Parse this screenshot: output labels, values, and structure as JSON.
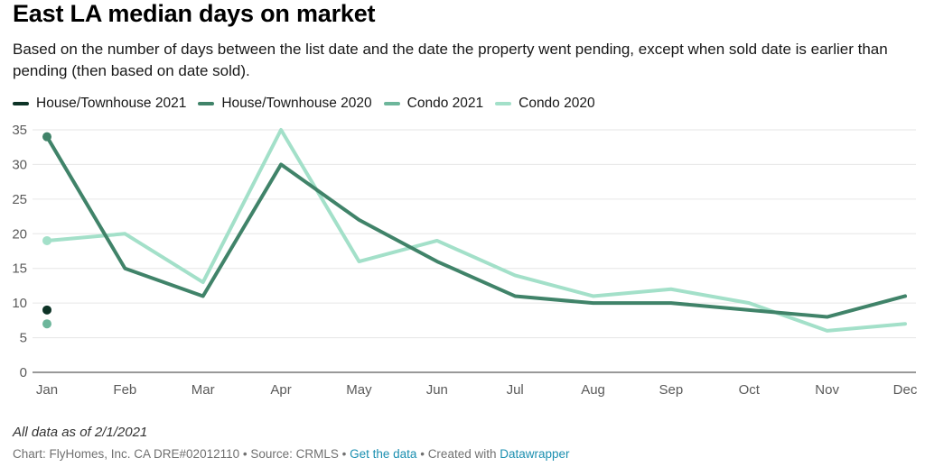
{
  "title": "East LA median days on market",
  "subtitle": "Based on the number of days between the list date and the date the property went pending, except when sold date is earlier than pending (then based on date sold).",
  "note": "All data as of 2/1/2021",
  "footer": {
    "chart_credit": "Chart: FlyHomes, Inc. CA DRE#02012110",
    "sep1": " • ",
    "source": "Source: CRMLS",
    "sep2": " • ",
    "get_data": "Get the data",
    "sep3": " • ",
    "created_with": "Created with ",
    "datawrapper": "Datawrapper"
  },
  "chart_data": {
    "type": "line",
    "title": "East LA median days on market",
    "xlabel": "",
    "ylabel": "",
    "ylim": [
      0,
      35
    ],
    "yticks": [
      0,
      5,
      10,
      15,
      20,
      25,
      30,
      35
    ],
    "categories": [
      "Jan",
      "Feb",
      "Mar",
      "Apr",
      "May",
      "Jun",
      "Jul",
      "Aug",
      "Sep",
      "Oct",
      "Nov",
      "Dec"
    ],
    "series": [
      {
        "name": "House/Townhouse 2021",
        "color": "#0d3326",
        "values": [
          9,
          null,
          null,
          null,
          null,
          null,
          null,
          null,
          null,
          null,
          null,
          null
        ]
      },
      {
        "name": "House/Townhouse 2020",
        "color": "#408369",
        "values": [
          34,
          15,
          11,
          30,
          22,
          16,
          11,
          10,
          10,
          9,
          8,
          11
        ]
      },
      {
        "name": "Condo 2021",
        "color": "#6db69b",
        "values": [
          7,
          null,
          null,
          null,
          null,
          null,
          null,
          null,
          null,
          null,
          null,
          null
        ]
      },
      {
        "name": "Condo 2020",
        "color": "#a3e0c9",
        "values": [
          19,
          20,
          13,
          35,
          16,
          19,
          14,
          11,
          12,
          10,
          6,
          7
        ]
      }
    ]
  }
}
